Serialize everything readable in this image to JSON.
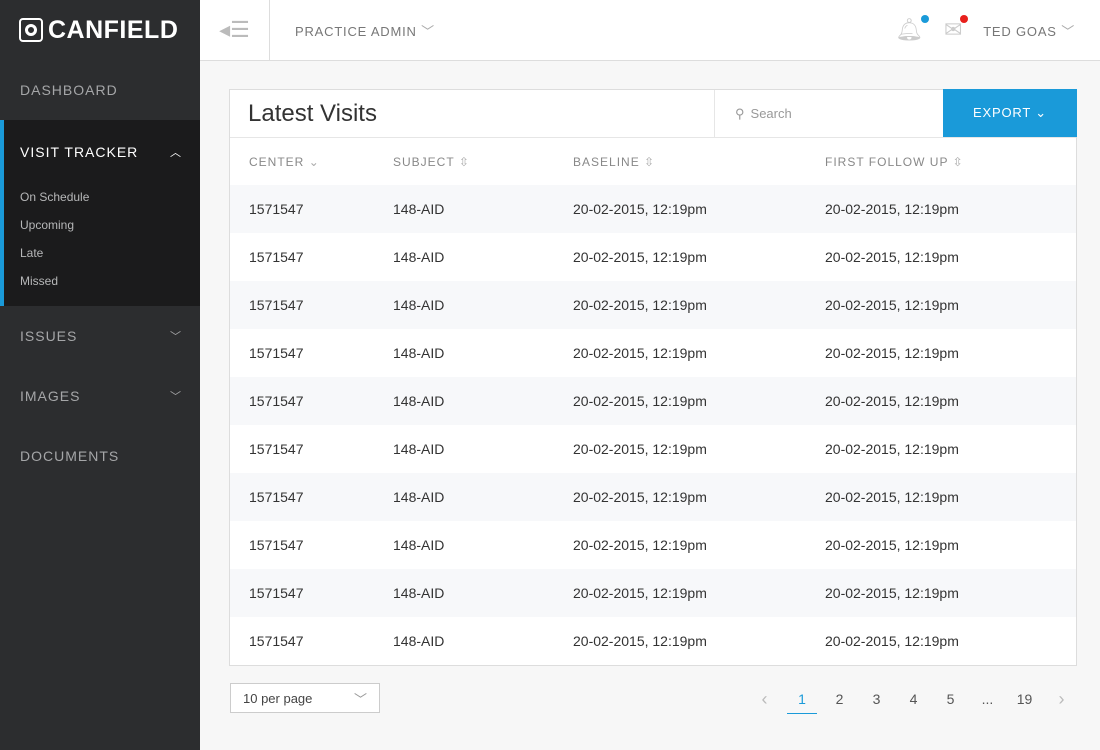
{
  "brand": "CANFIELD",
  "sidebar": {
    "dashboard": "DASHBOARD",
    "visit_tracker": "VISIT TRACKER",
    "sub": [
      "On Schedule",
      "Upcoming",
      "Late",
      "Missed"
    ],
    "issues": "ISSUES",
    "images": "IMAGES",
    "documents": "DOCUMENTS"
  },
  "header": {
    "practice": "PRACTICE ADMIN",
    "user": "TED GOAS",
    "colors": {
      "notification_dot": "#1a9ad9",
      "message_dot": "#e8201c"
    }
  },
  "card": {
    "title": "Latest Visits",
    "search_placeholder": "Search",
    "export": "EXPORT"
  },
  "table": {
    "columns": [
      "CENTER",
      "SUBJECT",
      "BASELINE",
      "FIRST FOLLOW UP"
    ],
    "rows": [
      [
        "1571547",
        "148-AID",
        "20-02-2015, 12:19pm",
        "20-02-2015, 12:19pm"
      ],
      [
        "1571547",
        "148-AID",
        "20-02-2015, 12:19pm",
        "20-02-2015, 12:19pm"
      ],
      [
        "1571547",
        "148-AID",
        "20-02-2015, 12:19pm",
        "20-02-2015, 12:19pm"
      ],
      [
        "1571547",
        "148-AID",
        "20-02-2015, 12:19pm",
        "20-02-2015, 12:19pm"
      ],
      [
        "1571547",
        "148-AID",
        "20-02-2015, 12:19pm",
        "20-02-2015, 12:19pm"
      ],
      [
        "1571547",
        "148-AID",
        "20-02-2015, 12:19pm",
        "20-02-2015, 12:19pm"
      ],
      [
        "1571547",
        "148-AID",
        "20-02-2015, 12:19pm",
        "20-02-2015, 12:19pm"
      ],
      [
        "1571547",
        "148-AID",
        "20-02-2015, 12:19pm",
        "20-02-2015, 12:19pm"
      ],
      [
        "1571547",
        "148-AID",
        "20-02-2015, 12:19pm",
        "20-02-2015, 12:19pm"
      ],
      [
        "1571547",
        "148-AID",
        "20-02-2015, 12:19pm",
        "20-02-2015, 12:19pm"
      ]
    ]
  },
  "pagination": {
    "per_page": "10 per page",
    "pages": [
      "1",
      "2",
      "3",
      "4",
      "5",
      "...",
      "19"
    ],
    "current": "1"
  },
  "accent": "#1a9ad9"
}
